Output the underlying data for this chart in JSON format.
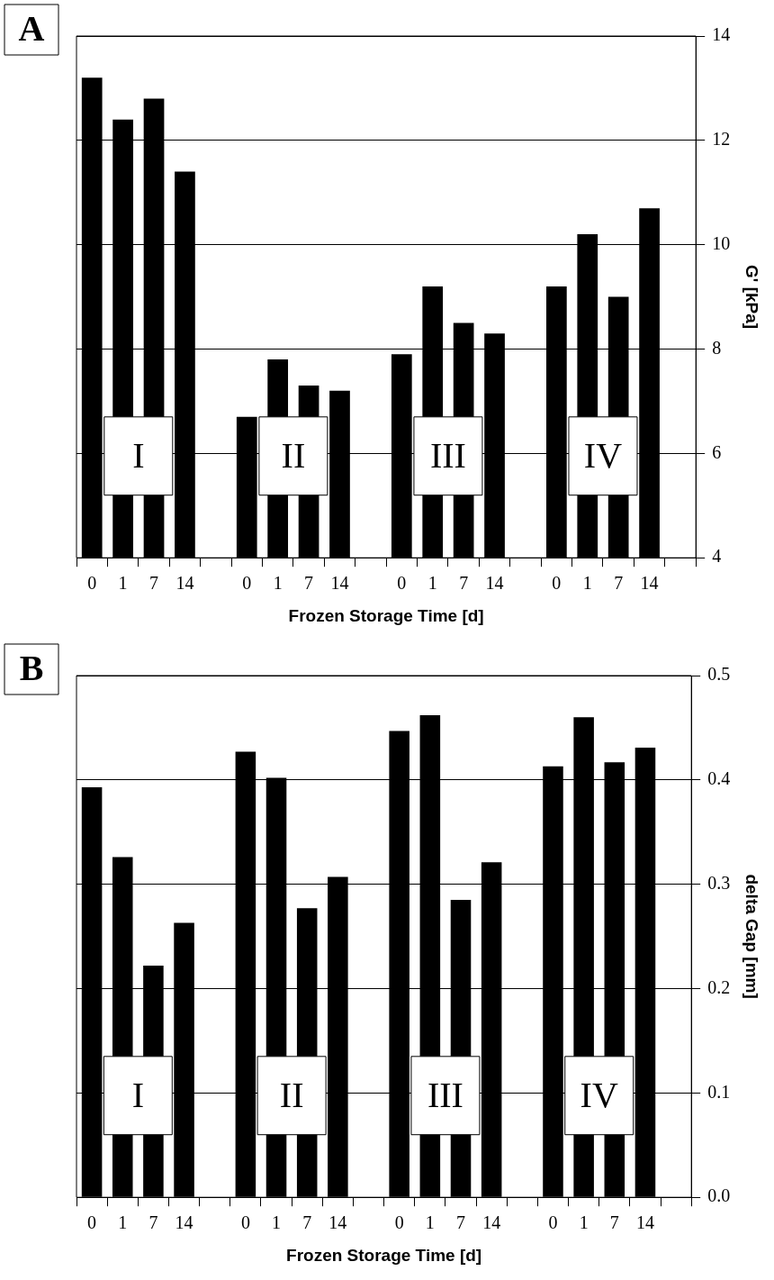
{
  "chart_data": [
    {
      "type": "bar",
      "title": "A",
      "xlabel": "Frozen Storage Time [d]",
      "ylabel": "G' [kPa]",
      "categories": [
        "0",
        "1",
        "7",
        "14",
        null,
        "0",
        "1",
        "7",
        "14",
        null,
        "0",
        "1",
        "7",
        "14",
        null,
        "0",
        "1",
        "7",
        "14",
        null
      ],
      "values": [
        13.2,
        12.4,
        12.8,
        11.4,
        null,
        6.7,
        7.8,
        7.3,
        7.2,
        null,
        7.9,
        9.2,
        8.5,
        8.3,
        null,
        9.2,
        10.2,
        9.0,
        10.7,
        null
      ],
      "color": "#000000",
      "ylim": [
        4,
        14
      ],
      "yticks": [
        4,
        6,
        8,
        10,
        12,
        14
      ],
      "grid": "y",
      "annotations": [
        "I",
        "II",
        "III",
        "IV"
      ]
    },
    {
      "type": "bar",
      "title": "B",
      "xlabel": "Frozen Storage Time [d]",
      "ylabel": "delta Gap [mm]",
      "categories": [
        "0",
        "1",
        "7",
        "14",
        null,
        "0",
        "1",
        "7",
        "14",
        null,
        "0",
        "1",
        "7",
        "14",
        null,
        "0",
        "1",
        "7",
        "14",
        null
      ],
      "values": [
        0.393,
        0.326,
        0.222,
        0.263,
        null,
        0.427,
        0.402,
        0.277,
        0.307,
        null,
        0.447,
        0.462,
        0.285,
        0.321,
        null,
        0.413,
        0.46,
        0.417,
        0.431,
        null
      ],
      "color": "#000000",
      "ylim": [
        0,
        0.5
      ],
      "yticks": [
        {
          "value": 0,
          "label": "0.0"
        },
        0.1,
        0.2,
        0.3,
        0.4,
        0.5
      ],
      "grid": "y",
      "annotations": [
        "I",
        "II",
        "III",
        "IV"
      ]
    }
  ]
}
